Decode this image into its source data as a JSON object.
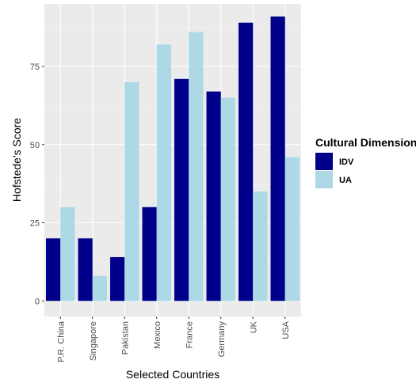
{
  "chart_data": {
    "type": "bar",
    "title": "",
    "xlabel": "Selected Countries",
    "ylabel": "Hofstede's Score",
    "categories": [
      "P.R. China",
      "Singapore",
      "Pakistan",
      "Mexico",
      "France",
      "Germany",
      "UK",
      "USA"
    ],
    "series": [
      {
        "name": "IDV",
        "color": "#00008b",
        "values": [
          20,
          20,
          14,
          30,
          71,
          67,
          89,
          91
        ]
      },
      {
        "name": "UA",
        "color": "#add8e6",
        "values": [
          30,
          8,
          70,
          82,
          86,
          65,
          35,
          46
        ]
      }
    ],
    "ylim": [
      -5,
      95
    ],
    "yticks": [
      0,
      25,
      50,
      75
    ],
    "yticklabels": [
      "0",
      "25",
      "50",
      "75"
    ],
    "grid": true,
    "legend": {
      "title": "Cultural Dimension",
      "position": "right"
    }
  }
}
